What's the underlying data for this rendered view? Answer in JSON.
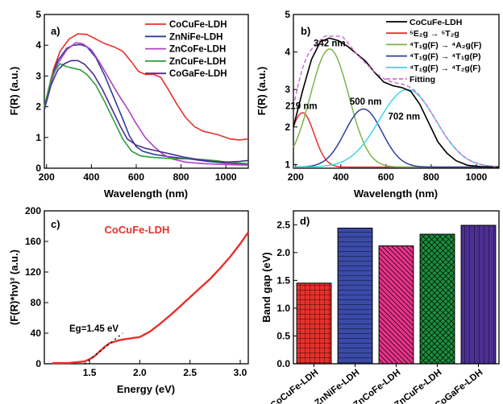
{
  "colors": {
    "red": "#e8302c",
    "blue": "#2e3f99",
    "purple": "#b23fc4",
    "green": "#2c9e3a",
    "indigo": "#4b2f91",
    "olive": "#7ab648",
    "cyan": "#3fd7e3",
    "fit": "#d36bd3",
    "pink": "#e8338a",
    "teal": "#1b8f3e",
    "navy": "#3a4aa6"
  },
  "chart_data": [
    {
      "panel": "a)",
      "type": "line",
      "xlabel": "Wavelength (nm)",
      "ylabel": "F(R) (a.u.)",
      "xlim": [
        190,
        1100
      ],
      "ylim": [
        0,
        5
      ],
      "xticks": [
        "200",
        "400",
        "600",
        "800",
        "1000"
      ],
      "yticks": [
        "0",
        "1",
        "2",
        "3",
        "4",
        "5"
      ],
      "legend": "top-right",
      "series": [
        {
          "name": "CoCuFe-LDH",
          "color": "#e8302c",
          "points": [
            [
              190,
              2.0
            ],
            [
              210,
              2.6
            ],
            [
              230,
              3.2
            ],
            [
              260,
              3.8
            ],
            [
              300,
              4.2
            ],
            [
              340,
              4.37
            ],
            [
              380,
              4.35
            ],
            [
              420,
              4.2
            ],
            [
              460,
              4.05
            ],
            [
              500,
              3.95
            ],
            [
              540,
              3.8
            ],
            [
              580,
              3.45
            ],
            [
              610,
              3.15
            ],
            [
              640,
              3.05
            ],
            [
              680,
              3.05
            ],
            [
              710,
              2.95
            ],
            [
              740,
              2.6
            ],
            [
              780,
              2.1
            ],
            [
              820,
              1.65
            ],
            [
              860,
              1.35
            ],
            [
              900,
              1.2
            ],
            [
              960,
              1.1
            ],
            [
              1020,
              0.95
            ],
            [
              1060,
              0.92
            ],
            [
              1100,
              0.95
            ]
          ]
        },
        {
          "name": "ZnNiFe-LDH",
          "color": "#2e3f99",
          "points": [
            [
              190,
              1.9
            ],
            [
              220,
              2.9
            ],
            [
              250,
              3.5
            ],
            [
              290,
              3.9
            ],
            [
              320,
              4.0
            ],
            [
              350,
              4.02
            ],
            [
              380,
              3.95
            ],
            [
              420,
              3.6
            ],
            [
              460,
              3.0
            ],
            [
              500,
              2.3
            ],
            [
              540,
              1.6
            ],
            [
              570,
              1.05
            ],
            [
              600,
              0.7
            ],
            [
              630,
              0.55
            ],
            [
              680,
              0.45
            ],
            [
              740,
              0.38
            ],
            [
              800,
              0.33
            ],
            [
              860,
              0.28
            ],
            [
              920,
              0.22
            ],
            [
              980,
              0.18
            ],
            [
              1040,
              0.15
            ],
            [
              1100,
              0.13
            ]
          ]
        },
        {
          "name": "ZnCoFe-LDH",
          "color": "#b23fc4",
          "points": [
            [
              190,
              2.0
            ],
            [
              220,
              2.8
            ],
            [
              250,
              3.4
            ],
            [
              290,
              3.85
            ],
            [
              330,
              4.08
            ],
            [
              360,
              4.05
            ],
            [
              400,
              3.85
            ],
            [
              440,
              3.4
            ],
            [
              480,
              2.9
            ],
            [
              520,
              2.4
            ],
            [
              560,
              1.95
            ],
            [
              600,
              1.45
            ],
            [
              640,
              1.0
            ],
            [
              680,
              0.7
            ],
            [
              720,
              0.45
            ],
            [
              760,
              0.3
            ],
            [
              820,
              0.2
            ],
            [
              900,
              0.15
            ],
            [
              1000,
              0.12
            ],
            [
              1100,
              0.1
            ]
          ]
        },
        {
          "name": "ZnCuFe-LDH",
          "color": "#2c9e3a",
          "points": [
            [
              190,
              2.0
            ],
            [
              210,
              2.6
            ],
            [
              230,
              3.1
            ],
            [
              260,
              3.4
            ],
            [
              290,
              3.3
            ],
            [
              320,
              3.25
            ],
            [
              350,
              3.2
            ],
            [
              380,
              3.05
            ],
            [
              420,
              2.7
            ],
            [
              460,
              2.15
            ],
            [
              500,
              1.55
            ],
            [
              540,
              0.95
            ],
            [
              580,
              0.55
            ],
            [
              620,
              0.4
            ],
            [
              660,
              0.36
            ],
            [
              720,
              0.33
            ],
            [
              780,
              0.31
            ],
            [
              840,
              0.3
            ],
            [
              900,
              0.28
            ],
            [
              960,
              0.24
            ],
            [
              1020,
              0.18
            ],
            [
              1100,
              0.15
            ]
          ]
        },
        {
          "name": "CoGaFe-LDH",
          "color": "#4b2f91",
          "points": [
            [
              190,
              1.9
            ],
            [
              220,
              2.7
            ],
            [
              250,
              3.2
            ],
            [
              280,
              3.4
            ],
            [
              310,
              3.5
            ],
            [
              340,
              3.5
            ],
            [
              370,
              3.38
            ],
            [
              410,
              3.05
            ],
            [
              450,
              2.55
            ],
            [
              490,
              1.95
            ],
            [
              530,
              1.35
            ],
            [
              560,
              0.95
            ],
            [
              600,
              0.75
            ],
            [
              640,
              0.65
            ],
            [
              700,
              0.55
            ],
            [
              760,
              0.45
            ],
            [
              820,
              0.35
            ],
            [
              880,
              0.28
            ],
            [
              940,
              0.22
            ],
            [
              1000,
              0.2
            ],
            [
              1060,
              0.22
            ],
            [
              1100,
              0.25
            ]
          ]
        }
      ]
    },
    {
      "panel": "b)",
      "type": "line",
      "xlabel": "Wavelength (nm)",
      "ylabel": "F(R) (a.u.)",
      "xlim": [
        190,
        1100
      ],
      "ylim": [
        0.9,
        5
      ],
      "xticks": [
        "200",
        "400",
        "600",
        "800",
        "1000"
      ],
      "yticks": [
        "1",
        "2",
        "3",
        "4",
        "5"
      ],
      "legend": "top-right",
      "legend_entries": [
        {
          "label": "CoCuFe-LDH",
          "color": "#000000",
          "dashed": false
        },
        {
          "label": "⁵E₂g → ⁵T₂g",
          "color": "#e8302c",
          "dashed": false
        },
        {
          "label": "⁴T₁g(F) → ⁴A₂g(F)",
          "color": "#7ab648",
          "dashed": false
        },
        {
          "label": "⁴T₁g(F) → ⁴T₁g(P)",
          "color": "#2e3f99",
          "dashed": false
        },
        {
          "label": "⁴T₁g(F) → ⁴T₂g(F)",
          "color": "#3fd7e3",
          "dashed": false
        },
        {
          "label": "Fitting",
          "color": "#d36bd3",
          "dashed": true
        }
      ],
      "annotations": [
        {
          "text": "342 nm",
          "x": 350,
          "y": 4.15
        },
        {
          "text": "219 nm",
          "x": 225,
          "y": 2.48
        },
        {
          "text": "500 nm",
          "x": 510,
          "y": 2.6
        },
        {
          "text": "702 nm",
          "x": 680,
          "y": 2.2
        }
      ],
      "peaks": [
        {
          "center": 230,
          "height": 1.45,
          "width": 52,
          "color": "#e8302c"
        },
        {
          "center": 350,
          "height": 3.15,
          "width": 85,
          "color": "#7ab648"
        },
        {
          "center": 500,
          "height": 1.55,
          "width": 82,
          "color": "#2e3f99"
        },
        {
          "center": 695,
          "height": 2.07,
          "width": 125,
          "color": "#3fd7e3"
        }
      ],
      "baseline": 0.93,
      "data_series": {
        "name": "CoCuFe-LDH",
        "points": [
          [
            190,
            2.0
          ],
          [
            230,
            2.95
          ],
          [
            270,
            3.8
          ],
          [
            310,
            4.28
          ],
          [
            350,
            4.37
          ],
          [
            390,
            4.3
          ],
          [
            430,
            4.15
          ],
          [
            470,
            3.95
          ],
          [
            510,
            3.75
          ],
          [
            550,
            3.45
          ],
          [
            590,
            3.2
          ],
          [
            630,
            3.1
          ],
          [
            670,
            3.05
          ],
          [
            710,
            2.95
          ],
          [
            750,
            2.6
          ],
          [
            790,
            2.1
          ],
          [
            830,
            1.6
          ],
          [
            870,
            1.3
          ],
          [
            910,
            1.1
          ],
          [
            960,
            0.98
          ],
          [
            1020,
            0.94
          ],
          [
            1100,
            0.93
          ]
        ]
      }
    },
    {
      "panel": "c)",
      "type": "line",
      "title": "CoCuFe-LDH",
      "xlabel": "Energy (eV)",
      "ylabel": "(F(R)*hν)² (a.u.)",
      "xlim": [
        1.05,
        3.08
      ],
      "ylim": [
        0,
        200
      ],
      "xticks": [
        "1.0",
        "1.5",
        "2.0",
        "2.5",
        "3.0"
      ],
      "yticks": [
        "0",
        "40",
        "80",
        "120",
        "160",
        "200"
      ],
      "annotation": "Eg=1.45 eV",
      "series": [
        {
          "name": "CoCuFe-LDH",
          "color": "#e8302c",
          "points": [
            [
              1.13,
              1
            ],
            [
              1.3,
              1.2
            ],
            [
              1.45,
              3
            ],
            [
              1.5,
              6
            ],
            [
              1.55,
              10
            ],
            [
              1.6,
              16
            ],
            [
              1.65,
              22
            ],
            [
              1.7,
              27
            ],
            [
              1.8,
              31
            ],
            [
              1.9,
              33
            ],
            [
              2.0,
              35
            ],
            [
              2.1,
              42
            ],
            [
              2.2,
              52
            ],
            [
              2.3,
              63
            ],
            [
              2.4,
              75
            ],
            [
              2.5,
              87
            ],
            [
              2.6,
              99
            ],
            [
              2.7,
              111
            ],
            [
              2.8,
              125
            ],
            [
              2.9,
              140
            ],
            [
              3.0,
              157
            ],
            [
              3.08,
              172
            ]
          ]
        }
      ],
      "tangent": [
        [
          1.45,
          0
        ],
        [
          1.83,
          40
        ]
      ]
    },
    {
      "panel": "d)",
      "type": "bar",
      "ylabel": "Band gap (eV)",
      "ylim": [
        0,
        2.75
      ],
      "yticks": [
        "0.0",
        "0.5",
        "1.0",
        "1.5",
        "2.0",
        "2.5"
      ],
      "categories": [
        "CoCuFe-LDH",
        "ZnNiFe-LDH",
        "ZnCoFe-LDH",
        "ZnCuFe-LDH",
        "CoGaFe-LDH"
      ],
      "values": [
        1.45,
        2.44,
        2.12,
        2.33,
        2.49
      ],
      "colors": [
        "#e8302c",
        "#3a4aa6",
        "#e8338a",
        "#1b8f3e",
        "#4b2f91"
      ],
      "patterns": [
        "grid",
        "hlines",
        "diag-down",
        "crosshatch",
        "vlines"
      ]
    }
  ]
}
